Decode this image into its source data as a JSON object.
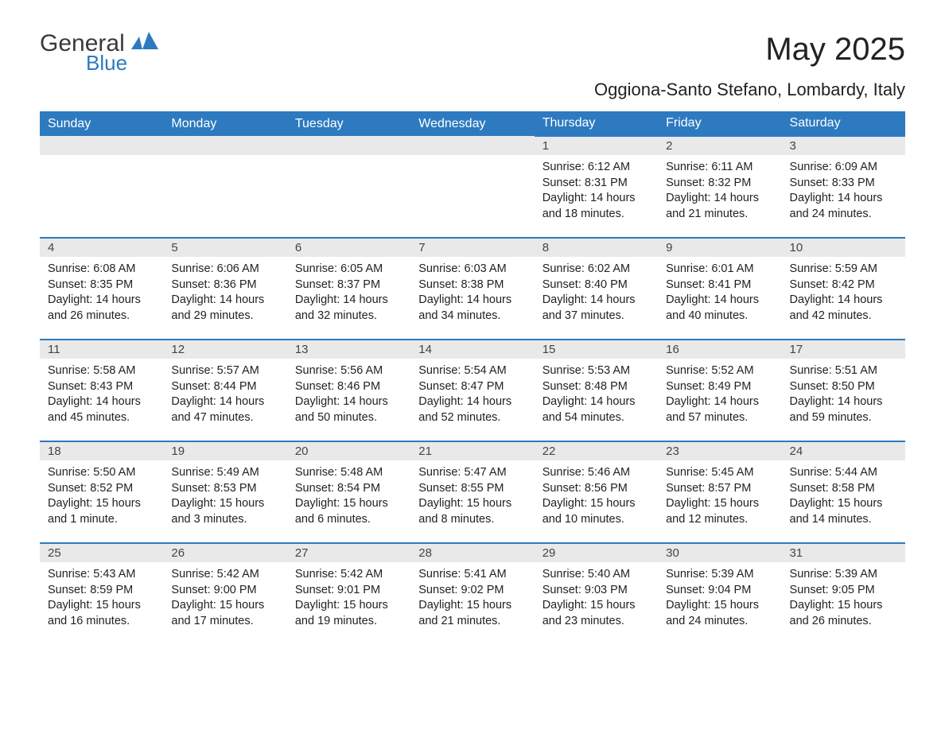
{
  "logo": {
    "general": "General",
    "blue": "Blue"
  },
  "title": "May 2025",
  "subtitle": "Oggiona-Santo Stefano, Lombardy, Italy",
  "colors": {
    "header_bg": "#2d7ac0",
    "header_text": "#ffffff",
    "daynum_bg": "#e9e9e9",
    "row_divider": "#2d7ac0",
    "body_text": "#222222",
    "page_bg": "#ffffff"
  },
  "weekdays": [
    "Sunday",
    "Monday",
    "Tuesday",
    "Wednesday",
    "Thursday",
    "Friday",
    "Saturday"
  ],
  "weeks": [
    [
      null,
      null,
      null,
      null,
      {
        "n": "1",
        "sunrise": "6:12 AM",
        "sunset": "8:31 PM",
        "daylight": "14 hours and 18 minutes."
      },
      {
        "n": "2",
        "sunrise": "6:11 AM",
        "sunset": "8:32 PM",
        "daylight": "14 hours and 21 minutes."
      },
      {
        "n": "3",
        "sunrise": "6:09 AM",
        "sunset": "8:33 PM",
        "daylight": "14 hours and 24 minutes."
      }
    ],
    [
      {
        "n": "4",
        "sunrise": "6:08 AM",
        "sunset": "8:35 PM",
        "daylight": "14 hours and 26 minutes."
      },
      {
        "n": "5",
        "sunrise": "6:06 AM",
        "sunset": "8:36 PM",
        "daylight": "14 hours and 29 minutes."
      },
      {
        "n": "6",
        "sunrise": "6:05 AM",
        "sunset": "8:37 PM",
        "daylight": "14 hours and 32 minutes."
      },
      {
        "n": "7",
        "sunrise": "6:03 AM",
        "sunset": "8:38 PM",
        "daylight": "14 hours and 34 minutes."
      },
      {
        "n": "8",
        "sunrise": "6:02 AM",
        "sunset": "8:40 PM",
        "daylight": "14 hours and 37 minutes."
      },
      {
        "n": "9",
        "sunrise": "6:01 AM",
        "sunset": "8:41 PM",
        "daylight": "14 hours and 40 minutes."
      },
      {
        "n": "10",
        "sunrise": "5:59 AM",
        "sunset": "8:42 PM",
        "daylight": "14 hours and 42 minutes."
      }
    ],
    [
      {
        "n": "11",
        "sunrise": "5:58 AM",
        "sunset": "8:43 PM",
        "daylight": "14 hours and 45 minutes."
      },
      {
        "n": "12",
        "sunrise": "5:57 AM",
        "sunset": "8:44 PM",
        "daylight": "14 hours and 47 minutes."
      },
      {
        "n": "13",
        "sunrise": "5:56 AM",
        "sunset": "8:46 PM",
        "daylight": "14 hours and 50 minutes."
      },
      {
        "n": "14",
        "sunrise": "5:54 AM",
        "sunset": "8:47 PM",
        "daylight": "14 hours and 52 minutes."
      },
      {
        "n": "15",
        "sunrise": "5:53 AM",
        "sunset": "8:48 PM",
        "daylight": "14 hours and 54 minutes."
      },
      {
        "n": "16",
        "sunrise": "5:52 AM",
        "sunset": "8:49 PM",
        "daylight": "14 hours and 57 minutes."
      },
      {
        "n": "17",
        "sunrise": "5:51 AM",
        "sunset": "8:50 PM",
        "daylight": "14 hours and 59 minutes."
      }
    ],
    [
      {
        "n": "18",
        "sunrise": "5:50 AM",
        "sunset": "8:52 PM",
        "daylight": "15 hours and 1 minute."
      },
      {
        "n": "19",
        "sunrise": "5:49 AM",
        "sunset": "8:53 PM",
        "daylight": "15 hours and 3 minutes."
      },
      {
        "n": "20",
        "sunrise": "5:48 AM",
        "sunset": "8:54 PM",
        "daylight": "15 hours and 6 minutes."
      },
      {
        "n": "21",
        "sunrise": "5:47 AM",
        "sunset": "8:55 PM",
        "daylight": "15 hours and 8 minutes."
      },
      {
        "n": "22",
        "sunrise": "5:46 AM",
        "sunset": "8:56 PM",
        "daylight": "15 hours and 10 minutes."
      },
      {
        "n": "23",
        "sunrise": "5:45 AM",
        "sunset": "8:57 PM",
        "daylight": "15 hours and 12 minutes."
      },
      {
        "n": "24",
        "sunrise": "5:44 AM",
        "sunset": "8:58 PM",
        "daylight": "15 hours and 14 minutes."
      }
    ],
    [
      {
        "n": "25",
        "sunrise": "5:43 AM",
        "sunset": "8:59 PM",
        "daylight": "15 hours and 16 minutes."
      },
      {
        "n": "26",
        "sunrise": "5:42 AM",
        "sunset": "9:00 PM",
        "daylight": "15 hours and 17 minutes."
      },
      {
        "n": "27",
        "sunrise": "5:42 AM",
        "sunset": "9:01 PM",
        "daylight": "15 hours and 19 minutes."
      },
      {
        "n": "28",
        "sunrise": "5:41 AM",
        "sunset": "9:02 PM",
        "daylight": "15 hours and 21 minutes."
      },
      {
        "n": "29",
        "sunrise": "5:40 AM",
        "sunset": "9:03 PM",
        "daylight": "15 hours and 23 minutes."
      },
      {
        "n": "30",
        "sunrise": "5:39 AM",
        "sunset": "9:04 PM",
        "daylight": "15 hours and 24 minutes."
      },
      {
        "n": "31",
        "sunrise": "5:39 AM",
        "sunset": "9:05 PM",
        "daylight": "15 hours and 26 minutes."
      }
    ]
  ],
  "labels": {
    "sunrise": "Sunrise: ",
    "sunset": "Sunset: ",
    "daylight": "Daylight: "
  }
}
